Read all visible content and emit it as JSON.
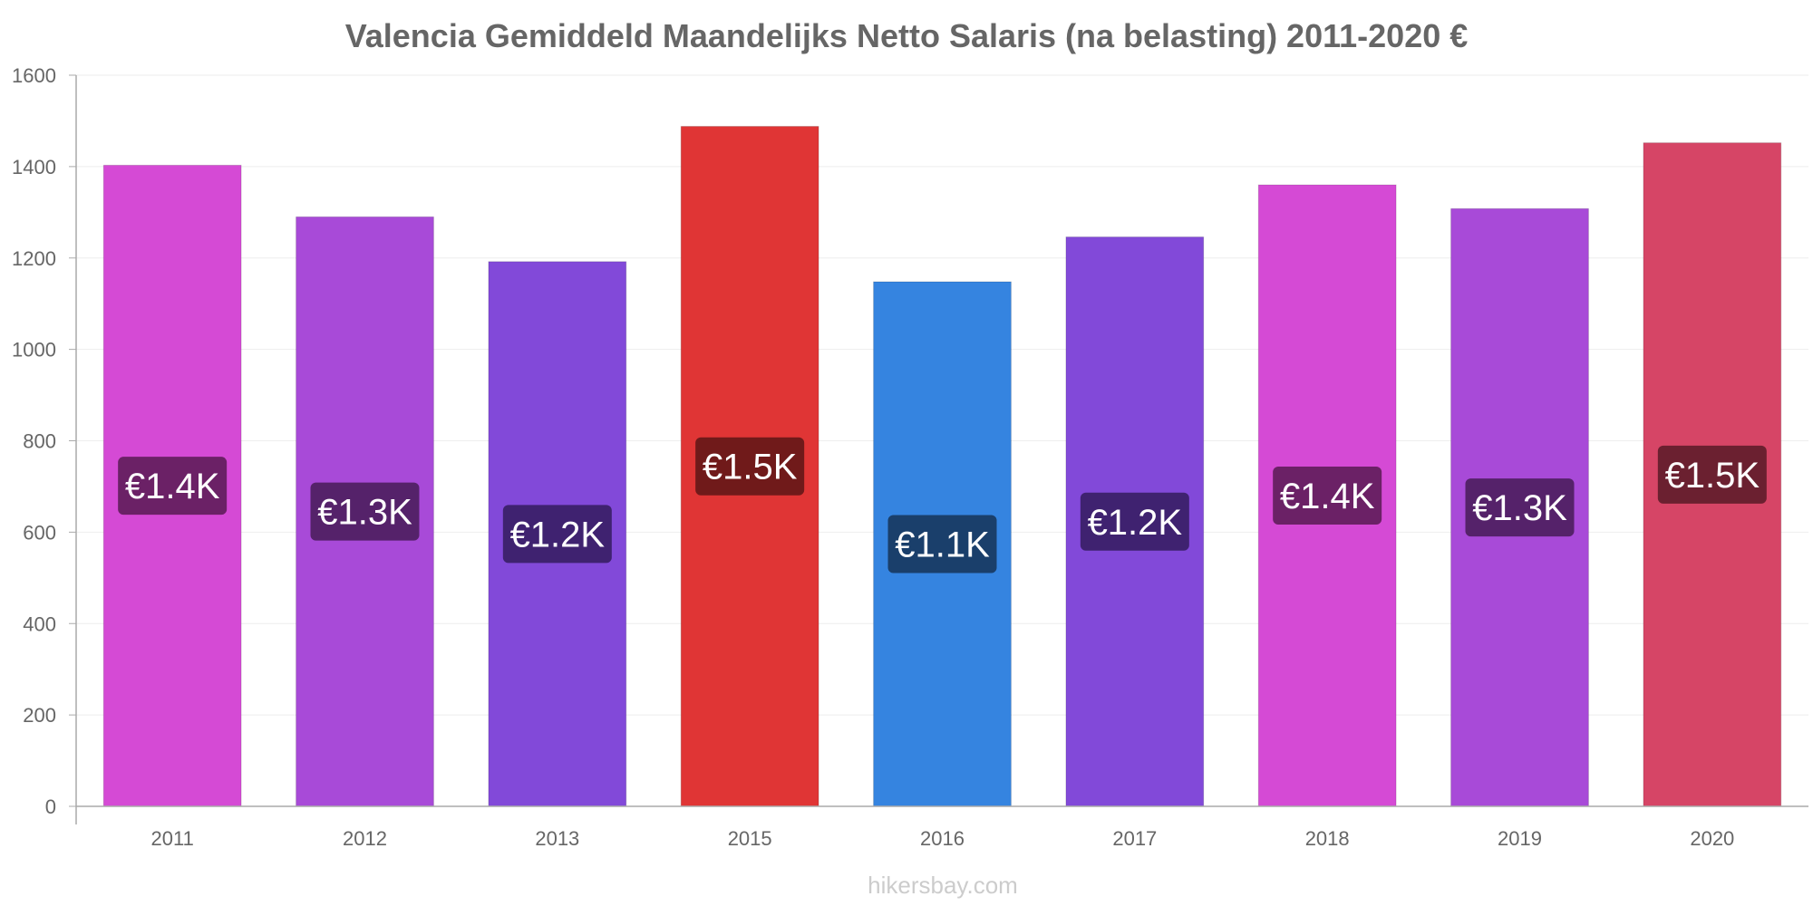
{
  "chart_data": {
    "type": "bar",
    "title": "Valencia Gemiddeld Maandelijks Netto Salaris (na belasting) 2011-2020 €",
    "xlabel": "",
    "ylabel": "",
    "ylim": [
      0,
      1600
    ],
    "yticks": [
      0,
      200,
      400,
      600,
      800,
      1000,
      1200,
      1400,
      1600
    ],
    "grid": true,
    "categories": [
      "2011",
      "2012",
      "2013",
      "2015",
      "2016",
      "2017",
      "2018",
      "2019",
      "2020"
    ],
    "values": [
      1403,
      1290,
      1192,
      1488,
      1148,
      1246,
      1360,
      1308,
      1452
    ],
    "data_labels": [
      "€1.4K",
      "€1.3K",
      "€1.2K",
      "€1.5K",
      "€1.1K",
      "€1.2K",
      "€1.4K",
      "€1.3K",
      "€1.5K"
    ],
    "bar_colors": [
      "#d54ad5",
      "#a84ad8",
      "#8249d9",
      "#e03535",
      "#3584e0",
      "#8249d9",
      "#d54ad5",
      "#a84ad8",
      "#d64566"
    ],
    "label_bg_colors": [
      "#6b2166",
      "#55226a",
      "#3f2270",
      "#701a1a",
      "#1a3f6b",
      "#3f2270",
      "#6b2166",
      "#55226a",
      "#6b2030"
    ]
  },
  "watermark": "hikersbay.com"
}
